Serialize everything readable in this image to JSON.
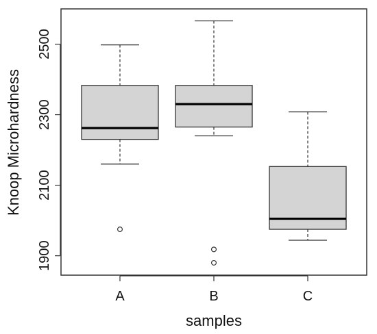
{
  "chart_data": {
    "type": "boxplot",
    "title": "",
    "xlabel": "samples",
    "ylabel": "Knoop Microhardness",
    "ylim": [
      1845,
      2600
    ],
    "yticks": [
      1900,
      2100,
      2300,
      2500
    ],
    "grid": false,
    "legend": "none",
    "box_fill": "#d4d4d4",
    "categories": [
      "A",
      "B",
      "C"
    ],
    "boxes": [
      {
        "label": "A",
        "whisker_low": 2160,
        "q1": 2230,
        "median": 2262,
        "q3": 2383,
        "whisker_high": 2498,
        "outliers": [
          1975
        ]
      },
      {
        "label": "B",
        "whisker_low": 2240,
        "q1": 2265,
        "median": 2330,
        "q3": 2383,
        "whisker_high": 2566,
        "outliers": [
          1918,
          1880
        ]
      },
      {
        "label": "C",
        "whisker_low": 1944,
        "q1": 1975,
        "median": 2005,
        "q3": 2153,
        "whisker_high": 2308,
        "outliers": []
      }
    ]
  }
}
